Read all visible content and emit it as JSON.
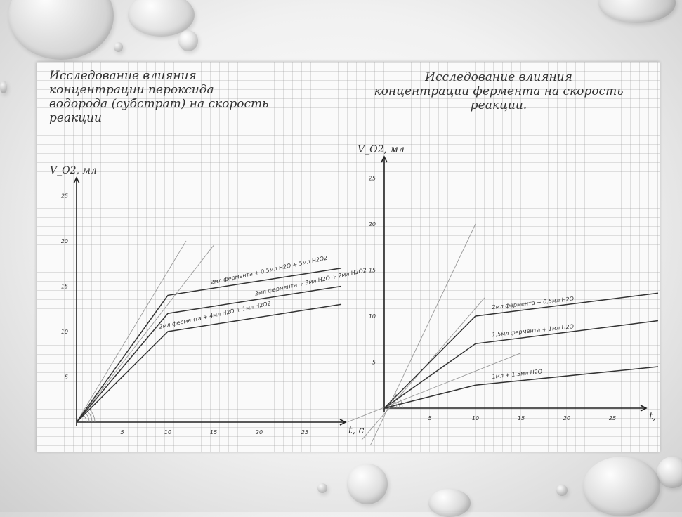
{
  "slide": {
    "left_title": "Исследование влияния\nконцентрации пероксида\nводорода (субстрат) на скорость\nреакции",
    "right_title": "Исследование влияния\nконцентрации фермента на скорость\nреакции."
  },
  "chart_data": [
    {
      "type": "line",
      "ylabel": "V_O2, мл",
      "xlabel": "t, c",
      "xticks": [
        "5",
        "10",
        "15",
        "20",
        "25"
      ],
      "yticks": [
        "5",
        "10",
        "15",
        "20",
        "25"
      ],
      "xlim": [
        0,
        27
      ],
      "ylim": [
        0,
        27
      ],
      "series": [
        {
          "name": "2мл фермента + 0,5мл H2O + 5мл H2O2",
          "x": [
            0,
            10,
            29
          ],
          "y": [
            0,
            14,
            17
          ]
        },
        {
          "name": "2мл фермента + 3мл H2O + 2мл H2O2",
          "x": [
            0,
            10,
            29
          ],
          "y": [
            0,
            12,
            15
          ]
        },
        {
          "name": "2мл фермента + 4мл H2O + 1мл H2O2",
          "x": [
            0,
            10,
            29
          ],
          "y": [
            0,
            10,
            13
          ]
        }
      ],
      "tangents": [
        {
          "x": [
            0,
            12
          ],
          "y": [
            0,
            20
          ]
        },
        {
          "x": [
            0,
            15
          ],
          "y": [
            0,
            19.5
          ]
        }
      ]
    },
    {
      "type": "line",
      "ylabel": "V_O2, мл",
      "xlabel": "t, c",
      "xticks": [
        "5",
        "10",
        "15",
        "20",
        "25"
      ],
      "yticks": [
        "5",
        "10",
        "15",
        "20",
        "25"
      ],
      "xlim": [
        0,
        27
      ],
      "ylim": [
        0,
        27
      ],
      "series": [
        {
          "name": "2мл фермента + 0,5мл H2O",
          "x": [
            0,
            10,
            30
          ],
          "y": [
            0,
            10,
            12.5
          ]
        },
        {
          "name": "1,5мл фермента + 1мл H2O",
          "x": [
            0,
            10,
            30
          ],
          "y": [
            0,
            7,
            9.5
          ]
        },
        {
          "name": "1мл + 1,5мл H2O",
          "x": [
            0,
            10,
            30
          ],
          "y": [
            0,
            2.5,
            4.5
          ]
        }
      ],
      "tangents": [
        {
          "x": [
            -1.5,
            10
          ],
          "y": [
            -4,
            20
          ]
        },
        {
          "x": [
            -2.5,
            11
          ],
          "y": [
            -3.5,
            12
          ]
        },
        {
          "x": [
            -4,
            15
          ],
          "y": [
            -1.5,
            6
          ]
        }
      ]
    }
  ]
}
